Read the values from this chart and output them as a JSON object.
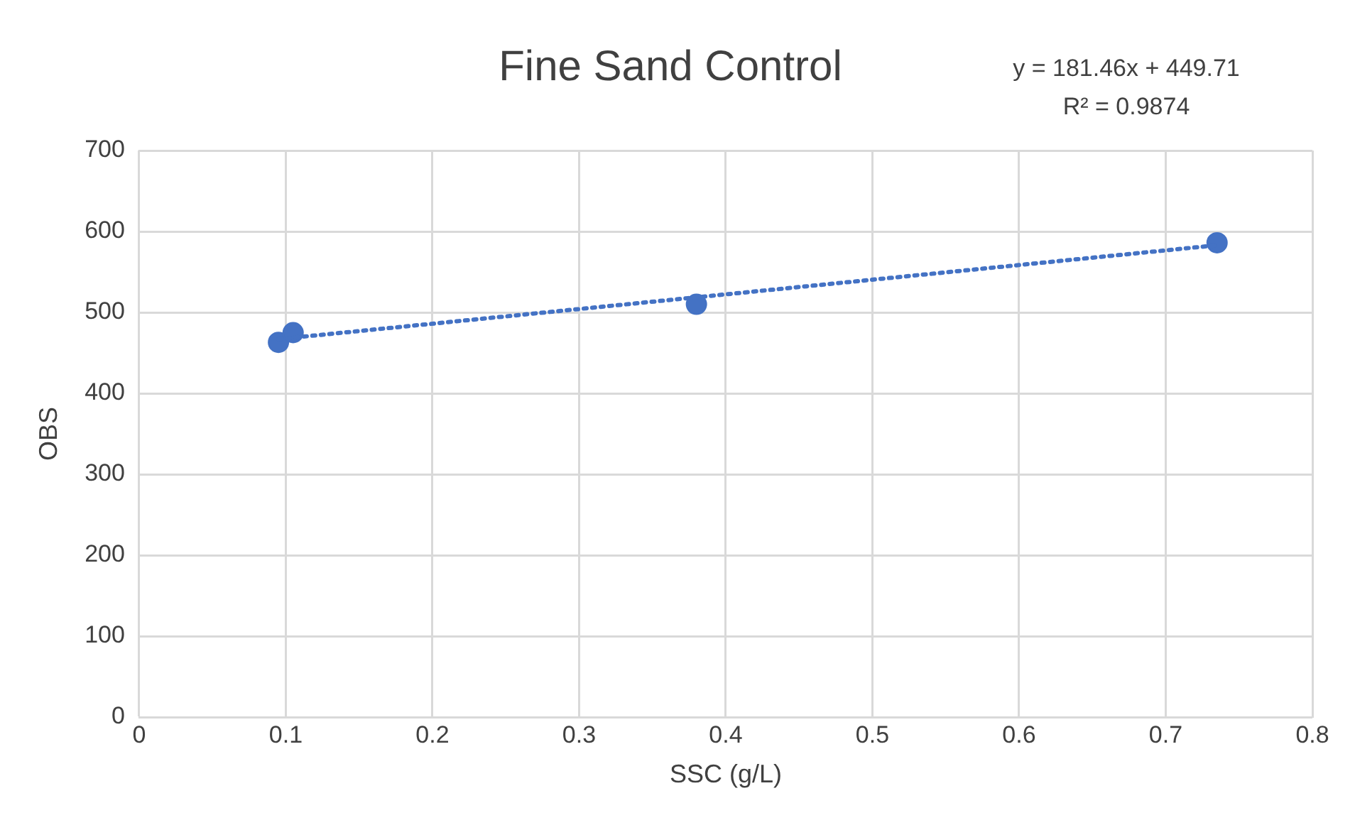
{
  "chart_data": {
    "type": "scatter",
    "title": "Fine Sand Control",
    "xlabel": "SSC (g/L)",
    "ylabel": "OBS",
    "annotations": [
      "y = 181.46x + 449.71",
      "R² = 0.9874"
    ],
    "series": [
      {
        "color": "#4472c4",
        "marker": "circle",
        "x": [
          0.095,
          0.105,
          0.38,
          0.735
        ],
        "values": [
          463,
          475,
          510,
          586
        ]
      },
      {
        "type": "line",
        "color": "#4472c4",
        "marker": "none",
        "line_style": "dotted",
        "x": [
          0.095,
          0.735
        ],
        "values": [
          467,
          583
        ]
      }
    ],
    "xlim": [
      0,
      0.8
    ],
    "xticks": [
      0,
      0.1,
      0.2,
      0.3,
      0.4,
      0.5,
      0.6,
      0.7,
      0.8
    ],
    "ylim": [
      0,
      700
    ],
    "yticks": [
      0,
      100,
      200,
      300,
      400,
      500,
      600,
      700
    ],
    "grid": true,
    "legend": false
  }
}
